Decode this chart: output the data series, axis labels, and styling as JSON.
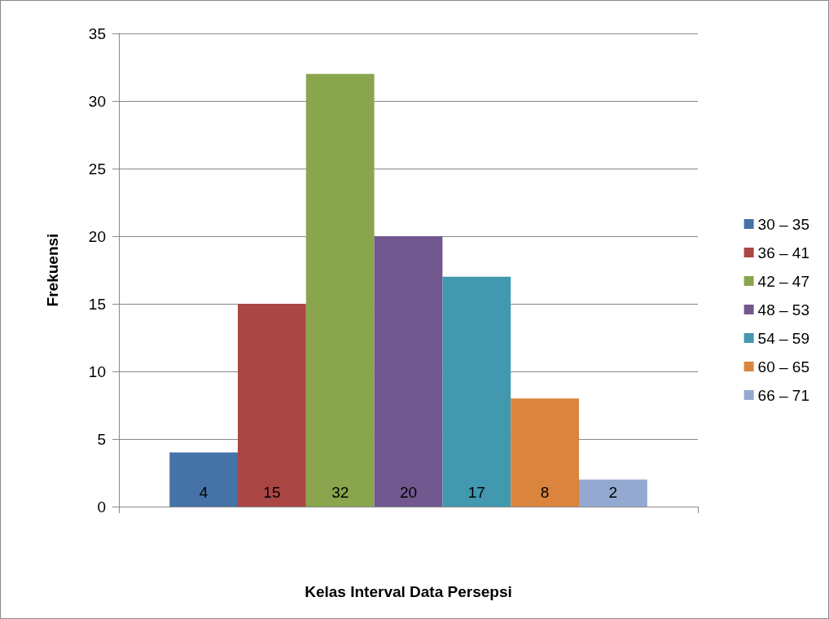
{
  "chart_data": {
    "type": "bar",
    "xlabel": "Kelas Interval Data Persepsi",
    "ylabel": "Frekuensi",
    "categories": [
      null
    ],
    "series": [
      {
        "name": "30 – 35",
        "color": "#4572a7",
        "values": [
          4
        ]
      },
      {
        "name": "36 – 41",
        "color": "#aa4643",
        "values": [
          15
        ]
      },
      {
        "name": "42 – 47",
        "color": "#89a54e",
        "values": [
          32
        ]
      },
      {
        "name": "48 – 53",
        "color": "#71588f",
        "values": [
          20
        ]
      },
      {
        "name": "54 – 59",
        "color": "#4198af",
        "values": [
          17
        ]
      },
      {
        "name": "60 – 65",
        "color": "#db843d",
        "values": [
          8
        ]
      },
      {
        "name": "66 – 71",
        "color": "#93a9cf",
        "values": [
          2
        ]
      }
    ],
    "ylim": [
      0,
      35
    ],
    "yticks": [
      0,
      5,
      10,
      15,
      20,
      25,
      30,
      35
    ],
    "grid": "y",
    "legend": "right",
    "data_labels": true
  }
}
